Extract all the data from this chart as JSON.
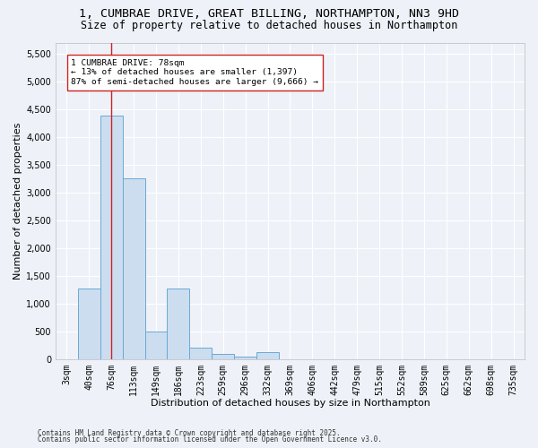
{
  "title_line1": "1, CUMBRAE DRIVE, GREAT BILLING, NORTHAMPTON, NN3 9HD",
  "title_line2": "Size of property relative to detached houses in Northampton",
  "xlabel": "Distribution of detached houses by size in Northampton",
  "ylabel": "Number of detached properties",
  "categories": [
    "3sqm",
    "40sqm",
    "76sqm",
    "113sqm",
    "149sqm",
    "186sqm",
    "223sqm",
    "259sqm",
    "296sqm",
    "332sqm",
    "369sqm",
    "406sqm",
    "442sqm",
    "479sqm",
    "515sqm",
    "552sqm",
    "589sqm",
    "625sqm",
    "662sqm",
    "698sqm",
    "735sqm"
  ],
  "values": [
    0,
    1270,
    4380,
    3250,
    500,
    1270,
    200,
    100,
    50,
    130,
    0,
    0,
    0,
    0,
    0,
    0,
    0,
    0,
    0,
    0,
    0
  ],
  "bar_color": "#ccddf0",
  "bar_edge_color": "#6aaad4",
  "property_bin_index": 2,
  "vline_color": "#cc2222",
  "annotation_text": "1 CUMBRAE DRIVE: 78sqm\n← 13% of detached houses are smaller (1,397)\n87% of semi-detached houses are larger (9,666) →",
  "annotation_box_edge": "#cc2222",
  "annotation_box_face": "white",
  "ylim": [
    0,
    5700
  ],
  "yticks": [
    0,
    500,
    1000,
    1500,
    2000,
    2500,
    3000,
    3500,
    4000,
    4500,
    5000,
    5500
  ],
  "footer_line1": "Contains HM Land Registry data © Crown copyright and database right 2025.",
  "footer_line2": "Contains public sector information licensed under the Open Government Licence v3.0.",
  "background_color": "#eef2f8",
  "grid_color": "#ffffff",
  "title_fontsize": 9.5,
  "subtitle_fontsize": 8.5,
  "label_fontsize": 8,
  "tick_fontsize": 7,
  "footer_fontsize": 5.5
}
